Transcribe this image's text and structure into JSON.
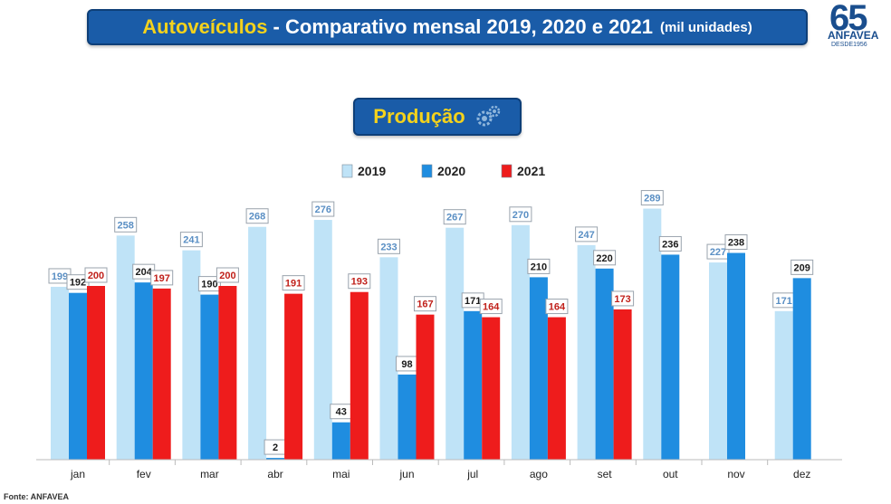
{
  "header": {
    "title_highlight": "Autoveículos",
    "title_rest": " - Comparativo mensal 2019, 2020 e 2021",
    "title_units": "(mil unidades)"
  },
  "logo": {
    "number": "65",
    "name": "ANFAVEA",
    "since": "DESDE1956"
  },
  "subtitle": {
    "label": "Produção",
    "icon": "gears-icon"
  },
  "source": "Fonte: ANFAVEA",
  "colors": {
    "s2019": "#bfe3f7",
    "s2020": "#1f8de0",
    "s2021": "#ee1c1c",
    "label_2019": "#5a8fc4",
    "label_2020": "#1a1a1a",
    "label_2021": "#c0201a"
  },
  "chart_data": {
    "type": "bar",
    "categories": [
      "jan",
      "fev",
      "mar",
      "abr",
      "mai",
      "jun",
      "jul",
      "ago",
      "set",
      "out",
      "nov",
      "dez"
    ],
    "series": [
      {
        "name": "2019",
        "values": [
          199,
          258,
          241,
          268,
          276,
          233,
          267,
          270,
          247,
          289,
          227,
          171
        ]
      },
      {
        "name": "2020",
        "values": [
          192,
          204,
          190,
          2,
          43,
          98,
          171,
          210,
          220,
          236,
          238,
          209
        ]
      },
      {
        "name": "2021",
        "values": [
          200,
          197,
          200,
          191,
          193,
          167,
          164,
          164,
          173,
          null,
          null,
          null
        ]
      }
    ],
    "ylim": [
      0,
      300
    ],
    "legend_position": "top-center",
    "grid": false
  }
}
